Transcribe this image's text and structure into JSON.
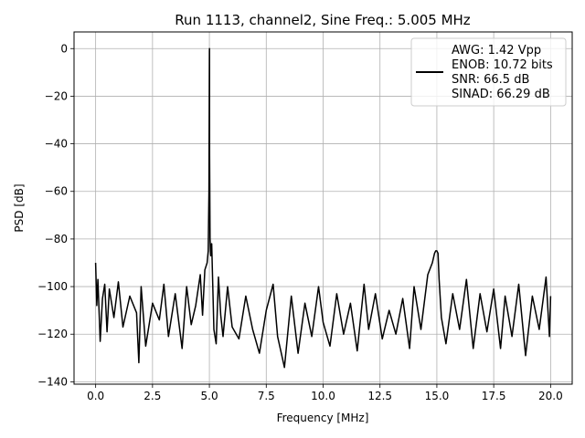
{
  "chart_data": {
    "type": "line",
    "title": "Run 1113, channel2, Sine Freq.: 5.005 MHz",
    "xlabel": "Frequency [MHz]",
    "ylabel": "PSD [dB]",
    "xlim": [
      -0.95,
      20.95
    ],
    "ylim": [
      -141,
      7
    ],
    "xticks": [
      0.0,
      2.5,
      5.0,
      7.5,
      10.0,
      12.5,
      15.0,
      17.5,
      20.0
    ],
    "xtick_labels": [
      "0.0",
      "2.5",
      "5.0",
      "7.5",
      "10.0",
      "12.5",
      "15.0",
      "17.5",
      "20.0"
    ],
    "yticks": [
      0,
      -20,
      -40,
      -60,
      -80,
      -100,
      -120,
      -140
    ],
    "ytick_labels": [
      "0",
      "−20",
      "−40",
      "−60",
      "−80",
      "−100",
      "−120",
      "−140"
    ],
    "grid": true,
    "legend": {
      "position": "top-right",
      "lines": [
        "AWG: 1.42 Vpp",
        "ENOB: 10.72 bits",
        "SNR: 66.5 dB",
        "SINAD: 66.29 dB"
      ]
    },
    "series": [
      {
        "color": "#000000",
        "x": [
          0.0,
          0.05,
          0.1,
          0.2,
          0.3,
          0.4,
          0.5,
          0.6,
          0.8,
          1.0,
          1.2,
          1.5,
          1.8,
          1.9,
          2.0,
          2.2,
          2.5,
          2.8,
          3.0,
          3.2,
          3.5,
          3.8,
          4.0,
          4.2,
          4.4,
          4.6,
          4.7,
          4.8,
          4.9,
          4.95,
          4.98,
          5.0,
          5.005,
          5.01,
          5.03,
          5.06,
          5.1,
          5.2,
          5.3,
          5.4,
          5.5,
          5.6,
          5.8,
          6.0,
          6.3,
          6.6,
          6.9,
          7.2,
          7.5,
          7.8,
          8.0,
          8.3,
          8.6,
          8.9,
          9.2,
          9.5,
          9.8,
          10.0,
          10.3,
          10.6,
          10.9,
          11.2,
          11.5,
          11.8,
          12.0,
          12.3,
          12.6,
          12.9,
          13.2,
          13.5,
          13.8,
          14.0,
          14.3,
          14.6,
          14.8,
          14.9,
          14.95,
          15.0,
          15.05,
          15.1,
          15.2,
          15.4,
          15.7,
          16.0,
          16.3,
          16.6,
          16.9,
          17.2,
          17.5,
          17.8,
          18.0,
          18.3,
          18.6,
          18.9,
          19.2,
          19.5,
          19.8,
          19.95,
          20.0
        ],
        "values": [
          -90,
          -108,
          -97,
          -123,
          -105,
          -99,
          -119,
          -101,
          -113,
          -98,
          -117,
          -104,
          -111,
          -132,
          -100,
          -125,
          -107,
          -114,
          -99,
          -121,
          -103,
          -126,
          -100,
          -116,
          -108,
          -95,
          -112,
          -93,
          -90,
          -85,
          -60,
          -1,
          0,
          -45,
          -80,
          -87,
          -82,
          -118,
          -124,
          -96,
          -112,
          -121,
          -100,
          -117,
          -122,
          -104,
          -118,
          -128,
          -110,
          -99,
          -121,
          -134,
          -104,
          -128,
          -107,
          -121,
          -100,
          -115,
          -125,
          -103,
          -120,
          -107,
          -127,
          -99,
          -118,
          -103,
          -122,
          -110,
          -120,
          -105,
          -126,
          -100,
          -118,
          -95,
          -90,
          -86,
          -85,
          -85,
          -86,
          -97,
          -113,
          -124,
          -103,
          -118,
          -97,
          -126,
          -103,
          -119,
          -101,
          -126,
          -104,
          -121,
          -99,
          -129,
          -104,
          -118,
          -96,
          -121,
          -104
        ]
      }
    ]
  }
}
